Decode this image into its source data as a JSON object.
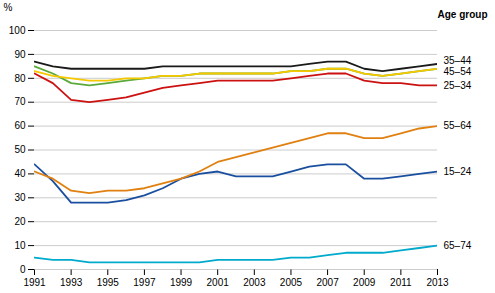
{
  "chart_data": {
    "type": "line",
    "x": [
      1991,
      1992,
      1993,
      1994,
      1995,
      1996,
      1997,
      1998,
      1999,
      2000,
      2001,
      2002,
      2003,
      2004,
      2005,
      2006,
      2007,
      2008,
      2009,
      2010,
      2011,
      2012,
      2013
    ],
    "series": [
      {
        "name": "65–74",
        "color": "#00aacc",
        "values": [
          5,
          4,
          4,
          3,
          3,
          3,
          3,
          3,
          3,
          3,
          4,
          4,
          4,
          4,
          5,
          5,
          6,
          7,
          7,
          7,
          8,
          9,
          10
        ]
      },
      {
        "name": "15–24",
        "color": "#1a4fa0",
        "values": [
          44,
          37,
          28,
          28,
          28,
          29,
          31,
          34,
          38,
          40,
          41,
          39,
          39,
          39,
          41,
          43,
          44,
          44,
          38,
          38,
          39,
          40,
          41
        ]
      },
      {
        "name": "55–64",
        "color": "#e08010",
        "values": [
          41,
          38,
          33,
          32,
          33,
          33,
          34,
          36,
          38,
          41,
          45,
          47,
          49,
          51,
          53,
          55,
          57,
          57,
          55,
          55,
          57,
          59,
          60
        ]
      },
      {
        "name": "25–34",
        "color": "#cc1111",
        "values": [
          82,
          78,
          71,
          70,
          71,
          72,
          74,
          76,
          77,
          78,
          79,
          79,
          79,
          79,
          80,
          81,
          82,
          82,
          79,
          78,
          78,
          77,
          77
        ]
      },
      {
        "name": null,
        "color": "#5aaa3a",
        "values": [
          85,
          82,
          78,
          77,
          78,
          79,
          80,
          81,
          81,
          82,
          82,
          82,
          82,
          82,
          83,
          83,
          84,
          84,
          82,
          81,
          82,
          83,
          84
        ]
      },
      {
        "name": "45–54",
        "color": "#f5c800",
        "values": [
          83,
          81,
          80,
          79,
          79,
          80,
          80,
          81,
          81,
          82,
          82,
          82,
          82,
          82,
          83,
          83,
          84,
          84,
          82,
          81,
          82,
          83,
          84
        ]
      },
      {
        "name": "35–44",
        "color": "#1a1a1a",
        "values": [
          87,
          85,
          84,
          84,
          84,
          84,
          84,
          85,
          85,
          85,
          85,
          85,
          85,
          85,
          85,
          86,
          87,
          87,
          84,
          83,
          84,
          85,
          86
        ]
      }
    ],
    "xlim": [
      1991,
      2013
    ],
    "xticks": [
      1991,
      1993,
      1995,
      1997,
      1999,
      2001,
      2003,
      2005,
      2007,
      2009,
      2011,
      2013
    ],
    "ylim": [
      0,
      100
    ],
    "yticks": [
      0,
      10,
      20,
      30,
      40,
      50,
      60,
      70,
      80,
      90,
      100
    ],
    "ylabel": "%",
    "grid": true,
    "annotations": [
      "Age group"
    ]
  }
}
